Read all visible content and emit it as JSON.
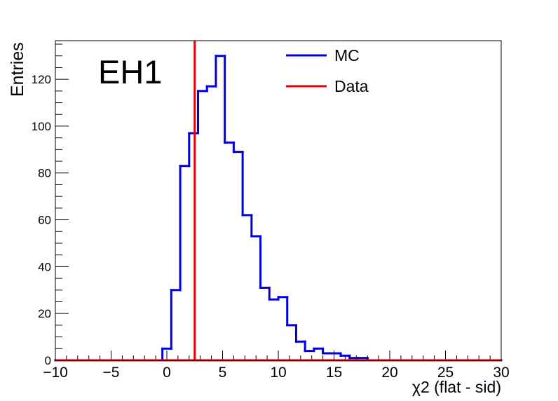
{
  "chart_data": {
    "type": "histogram",
    "title": "",
    "xlabel": "χ2 (flat - sid)",
    "ylabel": "Entries",
    "annotation": "EH1",
    "xlim": [
      -10,
      30
    ],
    "ylim": [
      0,
      136.5
    ],
    "x_ticks": [
      "−10",
      "−5",
      "0",
      "5",
      "10",
      "15",
      "20",
      "25",
      "30"
    ],
    "x_tick_values": [
      -10,
      -5,
      0,
      5,
      10,
      15,
      20,
      25,
      30
    ],
    "y_ticks": [
      "0",
      "20",
      "40",
      "60",
      "80",
      "100",
      "120"
    ],
    "y_tick_values": [
      0,
      20,
      40,
      60,
      80,
      100,
      120
    ],
    "grid": false,
    "legend_position": "top-right",
    "series": [
      {
        "name": "MC",
        "color": "#0000dd",
        "bin_edges": [
          -10,
          -9.2,
          -8.4,
          -7.6,
          -6.8,
          -6,
          -5.2,
          -4.4,
          -3.6,
          -2.8,
          -2,
          -1.2,
          -0.4,
          0.4,
          1.2,
          2,
          2.8,
          3.6,
          4.4,
          5.2,
          6,
          6.8,
          7.6,
          8.4,
          9.2,
          10,
          10.8,
          11.6,
          12.4,
          13.2,
          14,
          14.8,
          15.6,
          16.4,
          17.2,
          18,
          18.8,
          19.6,
          20.4,
          21.2,
          22,
          22.8,
          23.6,
          24.4,
          25.2,
          26,
          26.8,
          27.6,
          28.4,
          29.2,
          30
        ],
        "values": [
          0,
          0,
          0,
          0,
          0,
          0,
          0,
          0,
          0,
          0,
          0,
          0,
          5,
          30,
          83,
          97,
          115,
          117,
          130,
          93,
          89,
          62,
          53,
          31,
          26,
          27,
          15,
          8,
          4,
          5,
          3,
          3,
          2,
          1,
          1,
          0,
          0,
          0,
          0,
          0,
          0,
          0,
          0,
          0,
          0,
          0,
          0,
          0,
          0,
          0
        ]
      },
      {
        "name": "Data",
        "color": "#ee0000",
        "type": "vertical-line",
        "x": 2.5
      }
    ]
  }
}
